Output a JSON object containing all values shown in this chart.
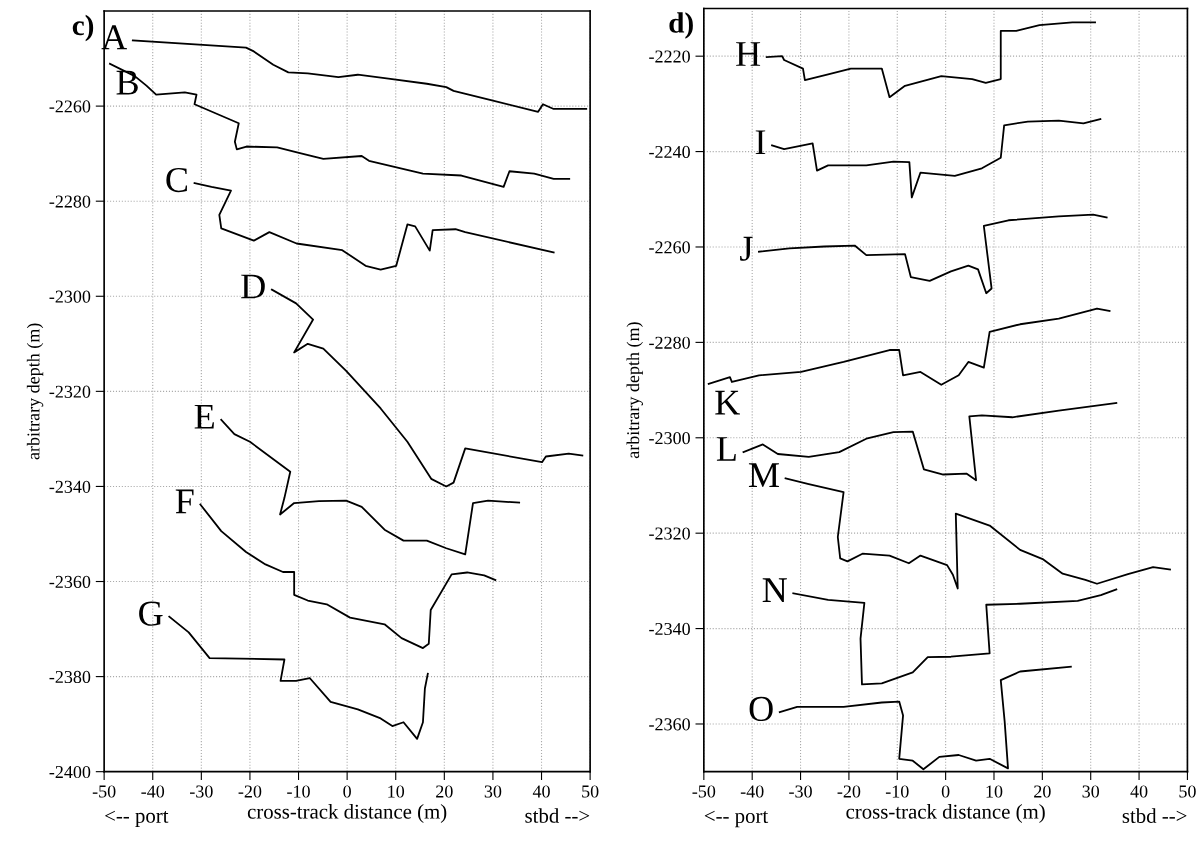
{
  "chart_data": [
    {
      "type": "line",
      "title": "c)",
      "xlabel": "cross-track distance (m)",
      "ylabel": "arbitrary depth (m)",
      "annotations": [
        "<-- port",
        "stbd -->"
      ],
      "xlim": [
        -50,
        50
      ],
      "xticks": [
        -50,
        -40,
        -30,
        -20,
        -10,
        0,
        10,
        20,
        30,
        40,
        50
      ],
      "ylim": [
        -2400,
        -2240
      ],
      "yticks": [
        -2400,
        -2380,
        -2360,
        -2340,
        -2320,
        -2300,
        -2280,
        -2260
      ],
      "grid": true,
      "line_style": "solid",
      "series": [
        {
          "name": "A",
          "color": "#000000",
          "x": [
            -44.1,
            -20.8,
            -19.2,
            -15.2,
            -12.1,
            -8.1,
            -1.8,
            2.2,
            8.5,
            16.4,
            20.4,
            21.9,
            29.8,
            39.3,
            40.3,
            42.5,
            49.2
          ],
          "values": [
            -2246.2,
            -2247.7,
            -2248.5,
            -2251.3,
            -2252.9,
            -2253.1,
            -2253.9,
            -2253.4,
            -2254.2,
            -2255.3,
            -2256.0,
            -2256.8,
            -2258.8,
            -2261.2,
            -2259.6,
            -2260.6,
            -2260.6
          ]
        },
        {
          "name": "B",
          "color": "#000000",
          "x": [
            -48.8,
            -43.7,
            -41.3,
            -39.3,
            -33.4,
            -31.0,
            -31.4,
            -22.3,
            -23.1,
            -22.7,
            -20.7,
            -14.4,
            -9.7,
            -4.9,
            3.0,
            4.5,
            15.6,
            23.5,
            32.2,
            33.4,
            38.5,
            42.5,
            45.7
          ],
          "values": [
            -2251.1,
            -2253.7,
            -2255.7,
            -2257.6,
            -2257.1,
            -2257.6,
            -2259.6,
            -2263.6,
            -2267.5,
            -2269.1,
            -2268.5,
            -2268.7,
            -2269.9,
            -2271.1,
            -2270.5,
            -2271.5,
            -2274.2,
            -2274.6,
            -2277.0,
            -2273.7,
            -2274.2,
            -2275.3,
            -2275.3
          ]
        },
        {
          "name": "C",
          "color": "#000000",
          "x": [
            -31.4,
            -27.9,
            -23.9,
            -26.3,
            -25.9,
            -19.2,
            -16.0,
            -10.4,
            -1.0,
            3.8,
            6.9,
            10.1,
            12.4,
            14.0,
            17.0,
            17.6,
            22.3,
            24.3,
            42.5
          ],
          "values": [
            -2276.2,
            -2277.0,
            -2277.8,
            -2282.9,
            -2285.7,
            -2288.3,
            -2286.5,
            -2288.9,
            -2290.3,
            -2293.6,
            -2294.4,
            -2293.6,
            -2284.9,
            -2285.3,
            -2290.4,
            -2286.1,
            -2285.9,
            -2286.5,
            -2290.8
          ]
        },
        {
          "name": "D",
          "color": "#000000",
          "x": [
            -15.5,
            -10.5,
            -7.0,
            -10.9,
            -8.1,
            -4.9,
            -0.2,
            6.9,
            12.4,
            17.3,
            20.4,
            21.9,
            24.3,
            40.1,
            40.9,
            45.6,
            48.4
          ],
          "values": [
            -2298.6,
            -2301.5,
            -2304.9,
            -2311.8,
            -2310.0,
            -2311.0,
            -2315.7,
            -2323.6,
            -2330.6,
            -2338.4,
            -2340.0,
            -2339.2,
            -2332.0,
            -2334.9,
            -2333.7,
            -2333.1,
            -2333.5
          ]
        },
        {
          "name": "E",
          "color": "#000000",
          "x": [
            -25.9,
            -23.2,
            -20.0,
            -11.7,
            -12.9,
            -13.8,
            -10.9,
            -5.8,
            -0.2,
            3.0,
            7.7,
            11.6,
            16.4,
            20.4,
            24.3,
            25.9,
            29.0,
            35.4
          ],
          "values": [
            -2326.0,
            -2329.0,
            -2330.6,
            -2336.9,
            -2342.4,
            -2345.9,
            -2343.5,
            -2343.1,
            -2343.0,
            -2344.3,
            -2349.1,
            -2351.4,
            -2351.4,
            -2353.0,
            -2354.3,
            -2343.5,
            -2343.0,
            -2343.4
          ]
        },
        {
          "name": "F",
          "color": "#000000",
          "x": [
            -30.2,
            -25.9,
            -20.8,
            -16.8,
            -13.2,
            -10.9,
            -10.9,
            -8.1,
            -4.2,
            0.6,
            7.7,
            11.2,
            15.6,
            16.8,
            17.2,
            21.5,
            24.7,
            28.2,
            30.5
          ],
          "values": [
            -2343.8,
            -2349.4,
            -2353.8,
            -2356.4,
            -2358.0,
            -2358.0,
            -2362.8,
            -2364.0,
            -2364.8,
            -2367.6,
            -2369.0,
            -2371.9,
            -2374.0,
            -2373.1,
            -2366.0,
            -2358.5,
            -2358.1,
            -2358.7,
            -2359.7
          ]
        },
        {
          "name": "G",
          "color": "#000000",
          "x": [
            -36.6,
            -32.6,
            -28.3,
            -12.9,
            -13.7,
            -10.5,
            -7.7,
            -3.4,
            2.2,
            6.9,
            9.3,
            11.6,
            14.4,
            15.6,
            16.0,
            16.6
          ],
          "values": [
            -2367.4,
            -2370.7,
            -2376.1,
            -2376.4,
            -2380.9,
            -2380.9,
            -2380.3,
            -2385.3,
            -2386.9,
            -2388.8,
            -2390.4,
            -2389.6,
            -2393.1,
            -2389.6,
            -2382.5,
            -2379.4
          ]
        }
      ]
    },
    {
      "type": "line",
      "title": "d)",
      "xlabel": "cross-track distance (m)",
      "ylabel": "arbitrary depth (m)",
      "annotations": [
        "<-- port",
        "stbd -->"
      ],
      "xlim": [
        -50,
        50
      ],
      "xticks": [
        -50,
        -40,
        -30,
        -20,
        -10,
        0,
        10,
        20,
        30,
        40,
        50
      ],
      "ylim": [
        -2370,
        -2210
      ],
      "yticks": [
        -2360,
        -2340,
        -2320,
        -2300,
        -2280,
        -2260,
        -2240,
        -2220
      ],
      "grid": true,
      "line_style": "solid",
      "series": [
        {
          "name": "H",
          "color": "#000000",
          "x": [
            -37.0,
            -33.8,
            -33.4,
            -29.5,
            -29.1,
            -24.3,
            -19.6,
            -13.2,
            -11.6,
            -8.4,
            -0.9,
            5.5,
            8.3,
            11.4,
            11.4,
            14.6,
            19.4,
            26.2,
            30.9
          ],
          "values": [
            -2220.2,
            -2220.0,
            -2220.8,
            -2222.6,
            -2225.0,
            -2223.8,
            -2222.6,
            -2222.6,
            -2228.6,
            -2226.2,
            -2224.2,
            -2224.8,
            -2225.6,
            -2224.8,
            -2214.7,
            -2214.7,
            -2213.5,
            -2212.9,
            -2212.9
          ]
        },
        {
          "name": "I",
          "color": "#000000",
          "x": [
            -35.9,
            -33.4,
            -27.5,
            -26.6,
            -24.3,
            -16.4,
            -10.8,
            -7.5,
            -7.0,
            -5.2,
            1.9,
            7.5,
            11.4,
            12.1,
            17.0,
            23.4,
            28.5,
            32.0
          ],
          "values": [
            -2238.7,
            -2239.5,
            -2238.3,
            -2244.0,
            -2242.9,
            -2242.9,
            -2242.1,
            -2242.2,
            -2249.6,
            -2244.4,
            -2245.1,
            -2243.5,
            -2241.3,
            -2234.5,
            -2233.7,
            -2233.5,
            -2234.1,
            -2233.2
          ]
        },
        {
          "name": "J",
          "color": "#000000",
          "x": [
            -38.6,
            -32.3,
            -25.1,
            -18.8,
            -16.4,
            -8.4,
            -7.2,
            -3.3,
            1.1,
            4.7,
            6.7,
            8.4,
            9.5,
            7.9,
            13.0,
            23.4,
            30.5,
            33.3
          ],
          "values": [
            -2261.0,
            -2260.3,
            -2259.9,
            -2259.7,
            -2261.7,
            -2261.5,
            -2266.3,
            -2267.1,
            -2265.1,
            -2263.9,
            -2264.7,
            -2269.7,
            -2268.7,
            -2255.6,
            -2254.4,
            -2253.6,
            -2253.2,
            -2253.8
          ]
        },
        {
          "name": "K",
          "color": "#000000",
          "x": [
            -49.0,
            -44.6,
            -44.2,
            -38.6,
            -29.9,
            -21.1,
            -11.6,
            -9.6,
            -8.8,
            -5.2,
            -0.9,
            2.7,
            4.7,
            7.9,
            9.1,
            15.4,
            23.4,
            31.3,
            33.9
          ],
          "values": [
            -2288.7,
            -2287.3,
            -2288.3,
            -2286.9,
            -2286.2,
            -2284.1,
            -2281.6,
            -2281.6,
            -2286.9,
            -2286.2,
            -2288.9,
            -2286.9,
            -2284.1,
            -2285.3,
            -2277.8,
            -2276.2,
            -2275.0,
            -2272.9,
            -2273.4
          ]
        },
        {
          "name": "L",
          "color": "#000000",
          "x": [
            -41.8,
            -37.8,
            -34.7,
            -28.3,
            -22.0,
            -16.4,
            -10.8,
            -6.8,
            -4.5,
            -0.5,
            4.3,
            6.3,
            4.9,
            7.5,
            13.8,
            23.4,
            35.3
          ],
          "values": [
            -2303.0,
            -2301.4,
            -2303.4,
            -2304.0,
            -2303.0,
            -2300.2,
            -2298.8,
            -2298.7,
            -2306.6,
            -2307.7,
            -2307.5,
            -2308.9,
            -2295.5,
            -2295.3,
            -2295.7,
            -2294.3,
            -2292.7
          ]
        },
        {
          "name": "M",
          "color": "#000000",
          "x": [
            -33.1,
            -28.3,
            -21.1,
            -22.3,
            -21.8,
            -20.3,
            -17.2,
            -11.6,
            -7.6,
            -5.2,
            0.3,
            1.5,
            2.5,
            2.1,
            9.1,
            15.4,
            20.2,
            24.2,
            28.9,
            31.3,
            37.7,
            42.9,
            46.4
          ],
          "values": [
            -2308.5,
            -2309.7,
            -2311.4,
            -2320.8,
            -2325.3,
            -2325.9,
            -2324.3,
            -2324.7,
            -2326.3,
            -2324.7,
            -2326.7,
            -2328.7,
            -2331.6,
            -2315.9,
            -2318.4,
            -2323.5,
            -2325.5,
            -2328.5,
            -2329.8,
            -2330.6,
            -2328.6,
            -2327.1,
            -2327.6
          ]
        },
        {
          "name": "N",
          "color": "#000000",
          "x": [
            -31.5,
            -24.3,
            -16.8,
            -17.6,
            -17.3,
            -13.2,
            -6.8,
            -3.7,
            1.1,
            9.1,
            8.4,
            15.4,
            27.3,
            32.1,
            35.3
          ],
          "values": [
            -2332.6,
            -2334.0,
            -2334.6,
            -2342.1,
            -2351.7,
            -2351.5,
            -2349.2,
            -2346.0,
            -2345.9,
            -2345.2,
            -2335.0,
            -2334.8,
            -2334.2,
            -2333.0,
            -2331.8
          ]
        },
        {
          "name": "O",
          "color": "#000000",
          "x": [
            -34.3,
            -30.7,
            -21.1,
            -13.2,
            -9.6,
            -8.8,
            -9.6,
            -6.8,
            -4.6,
            -1.3,
            2.7,
            6.3,
            9.1,
            12.9,
            12.2,
            11.4,
            15.4,
            25.9
          ],
          "values": [
            -2357.5,
            -2356.4,
            -2356.4,
            -2355.5,
            -2355.3,
            -2358.2,
            -2367.3,
            -2367.7,
            -2369.5,
            -2366.9,
            -2366.5,
            -2367.7,
            -2367.3,
            -2369.3,
            -2359.4,
            -2350.8,
            -2349.0,
            -2348.0
          ]
        }
      ]
    }
  ]
}
